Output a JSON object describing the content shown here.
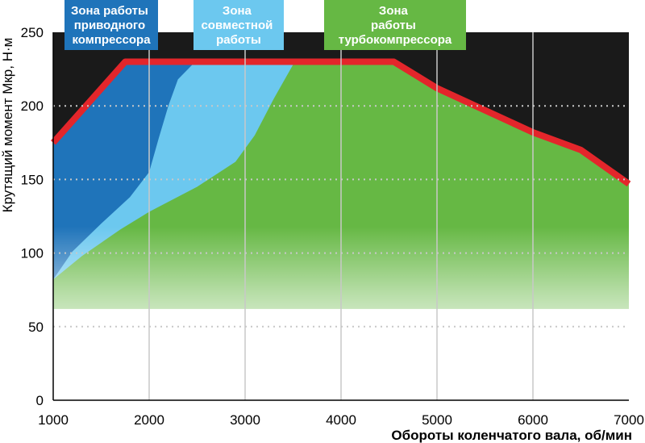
{
  "chart_data": {
    "type": "area",
    "xlabel": "Обороты коленчатого вала, об/мин",
    "ylabel": "Крутящий момент Мкр, Н·м",
    "xlim": [
      1000,
      7000
    ],
    "ylim": [
      0,
      250
    ],
    "xticks": [
      "1000",
      "2000",
      "3000",
      "4000",
      "5000",
      "6000",
      "7000"
    ],
    "yticks": [
      "0",
      "50",
      "100",
      "150",
      "200",
      "250"
    ],
    "grid": {
      "vertical": true,
      "horizontal_dotted": true
    },
    "colors": {
      "background": "#1a1a1a",
      "torque_curve": "#e3262b",
      "mechanical_zone": "#1f74ba",
      "combined_zone": "#6cc8ef",
      "turbo_zone": "#66b844",
      "base_fill": "#ffffff"
    },
    "zones": [
      {
        "key": "mechanical",
        "lines": [
          "Зона работы",
          "приводного",
          "компрессора"
        ],
        "color": "#1f74ba"
      },
      {
        "key": "combined",
        "lines": [
          "Зона",
          "совместной",
          "работы"
        ],
        "color": "#6cc8ef"
      },
      {
        "key": "turbo",
        "lines": [
          "Зона",
          "работы",
          "турбокомпрессора"
        ],
        "color": "#66b844"
      }
    ],
    "torque_curve": {
      "x": [
        1000,
        1750,
        4550,
        5000,
        6000,
        6500,
        7000
      ],
      "y": [
        175,
        230,
        230,
        212,
        182,
        170,
        147
      ]
    },
    "combined_zone_left_boundary": {
      "x": [
        1000,
        1200,
        1500,
        1800,
        2000,
        2100,
        2200,
        2300,
        2450
      ],
      "y": [
        82,
        101,
        120,
        138,
        155,
        178,
        200,
        218,
        228
      ]
    },
    "turbo_zone_left_boundary": {
      "x": [
        1000,
        1300,
        1700,
        2000,
        2500,
        2900,
        3100,
        3300,
        3500
      ],
      "y": [
        82,
        98,
        116,
        128,
        145,
        162,
        180,
        205,
        228
      ]
    }
  }
}
